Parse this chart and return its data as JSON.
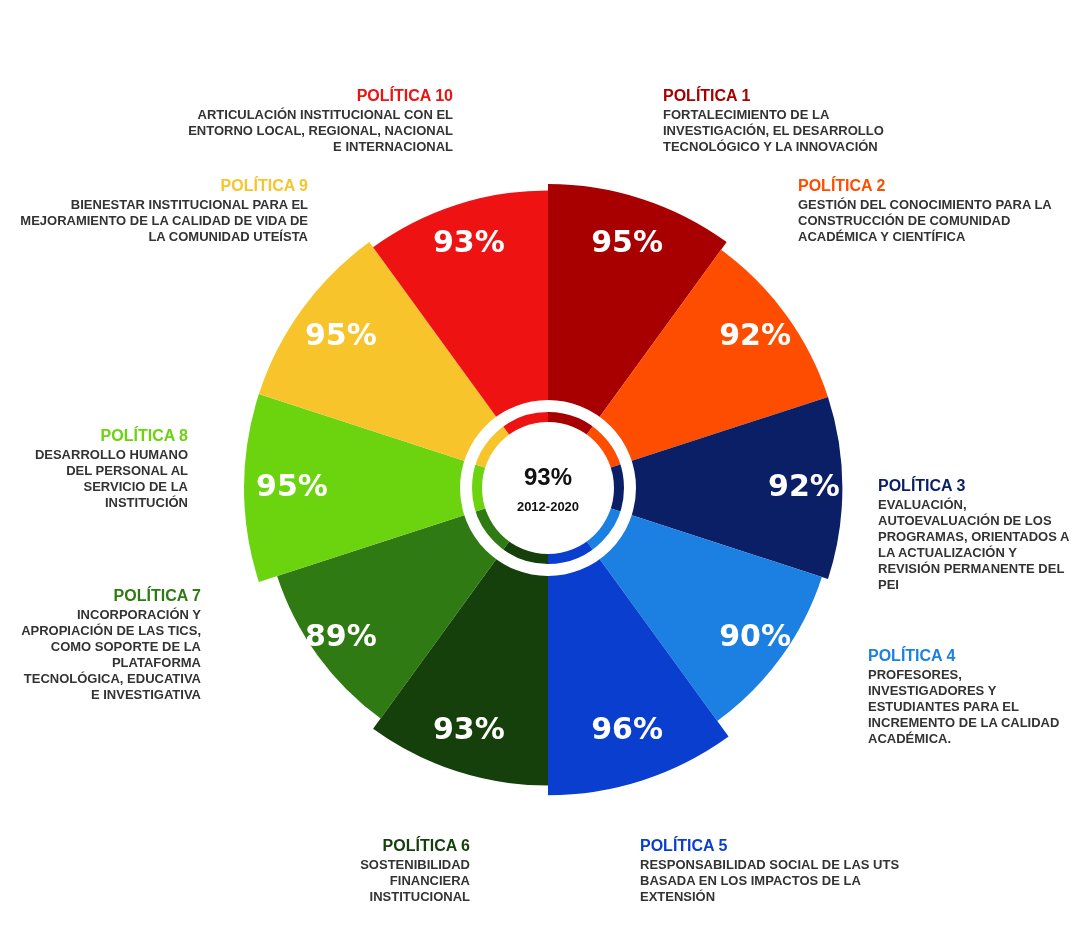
{
  "chart_data": {
    "type": "other",
    "categories": [
      "POLÍTICA 1",
      "POLÍTICA 2",
      "POLÍTICA 3",
      "POLÍTICA 4",
      "POLÍTICA 5",
      "POLÍTICA 6",
      "POLÍTICA 7",
      "POLÍTICA 8",
      "POLÍTICA 9",
      "POLÍTICA 10"
    ],
    "values": [
      95,
      92,
      92,
      90,
      96,
      93,
      89,
      95,
      95,
      93
    ],
    "value_labels": [
      "95%",
      "92%",
      "92%",
      "90%",
      "96%",
      "93%",
      "89%",
      "95%",
      "95%",
      "93%"
    ],
    "colors": [
      "#a80000",
      "#ff4d00",
      "#0b1f66",
      "#1c80e3",
      "#0a3ecf",
      "#153f0b",
      "#2f7a12",
      "#6cd40f",
      "#f8c42c",
      "#ee1212"
    ],
    "annotations": [
      "FORTALECIMIENTO DE LA INVESTIGACIÓN, EL DESARROLLO TECNOLÓGICO Y LA INNOVACIÓN",
      "GESTIÓN DEL CONOCIMIENTO PARA LA CONSTRUCCIÓN DE COMUNIDAD ACADÉMICA Y CIENTÍFICA",
      "EVALUACIÓN, AUTOEVALUACIÓN DE LOS PROGRAMAS, ORIENTADOS A LA ACTUALIZACIÓN Y REVISIÓN PERMANENTE DEL PEI",
      "PROFESORES, INVESTIGADORES Y ESTUDIANTES PARA EL INCREMENTO DE LA CALIDAD ACADÉMICA.",
      "RESPONSABILIDAD SOCIAL DE LAS UTS BASADA EN LOS IMPACTOS DE LA EXTENSIÓN",
      "SOSTENIBILIDAD FINANCIERA INSTITUCIONAL",
      "INCORPORACIÓN Y APROPIACIÓN DE LAS TICS, COMO SOPORTE DE LA PLATAFORMA TECNOLÓGICA, EDUCATIVA E INVESTIGATIVA",
      "DESARROLLO HUMANO DEL PERSONAL AL SERVICIO DE LA INSTITUCIÓN",
      "BIENESTAR INSTITUCIONAL PARA EL MEJORAMIENTO DE LA CALIDAD DE VIDA DE LA COMUNIDAD UTEÍSTA",
      "ARTICULACIÓN INSTITUCIONAL CON EL ENTORNO LOCAL, REGIONAL, NACIONAL E INTERNACIONAL",
      "93%",
      "2012-2020"
    ]
  }
}
